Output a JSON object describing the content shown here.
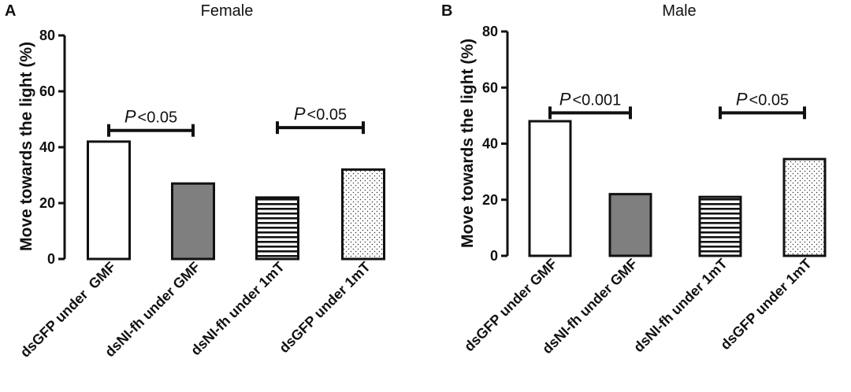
{
  "chart_data": [
    {
      "type": "bar",
      "panel": "A",
      "title": "Female",
      "ylabel": "Move towards the light (%)",
      "xlabel": "",
      "ylim": [
        0,
        80
      ],
      "yticks": [
        0,
        20,
        40,
        60,
        80
      ],
      "categories": [
        "dsGFP under  GMF",
        "dsNI-fh under GMF",
        "dsNI-fh under 1mT",
        "dsGFP under 1mT"
      ],
      "values": [
        42,
        27,
        22,
        32
      ],
      "fills": [
        "white",
        "gray",
        "horizontal-stripes",
        "dots"
      ],
      "significance": [
        {
          "between": [
            0,
            1
          ],
          "p_symbol": "P",
          "text": "<0.05",
          "y": 46
        },
        {
          "between": [
            2,
            3
          ],
          "p_symbol": "P",
          "text": "<0.05",
          "y": 47
        }
      ]
    },
    {
      "type": "bar",
      "panel": "B",
      "title": "Male",
      "ylabel": "Move towards the light (%)",
      "xlabel": "",
      "ylim": [
        0,
        80
      ],
      "yticks": [
        0,
        20,
        40,
        60,
        80
      ],
      "categories": [
        "dsGFP under GMF",
        "dsNI-fh under GMF",
        "dsNI-fh under 1mT",
        "dsGFP under 1mT"
      ],
      "values": [
        48,
        22,
        21,
        34.5
      ],
      "fills": [
        "white",
        "gray",
        "horizontal-stripes",
        "dots"
      ],
      "significance": [
        {
          "between": [
            0,
            1
          ],
          "p_symbol": "P",
          "text": "<0.001",
          "y": 51
        },
        {
          "between": [
            2,
            3
          ],
          "p_symbol": "P",
          "text": "<0.05",
          "y": 51
        }
      ]
    }
  ]
}
